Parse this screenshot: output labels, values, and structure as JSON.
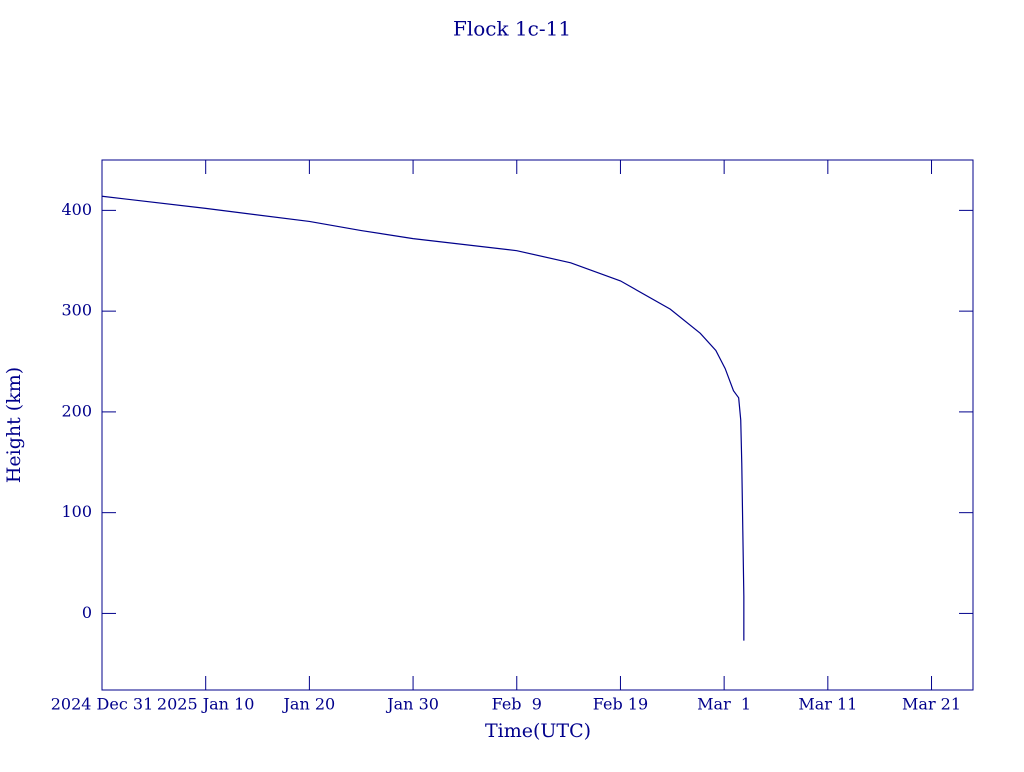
{
  "chart_data": {
    "type": "line",
    "title": "Flock 1c-11",
    "xlabel": "Time(UTC)",
    "ylabel": "Height (km)",
    "color": "#00008b",
    "x": [
      0,
      10,
      20,
      25,
      30,
      40,
      45.2,
      50,
      54.8,
      57.7,
      59.2,
      60.1,
      60.9,
      61.4,
      61.6,
      61.7,
      61.8,
      61.9,
      61.9
    ],
    "values": [
      414,
      402,
      389,
      380,
      372,
      360,
      348,
      330,
      302,
      278,
      261,
      243,
      221,
      214,
      192,
      149,
      82,
      17,
      -27
    ],
    "xlim": [
      0,
      84
    ],
    "ylim": [
      -76,
      450
    ],
    "xticks": [
      {
        "value": 0,
        "label": "2024 Dec 31"
      },
      {
        "value": 10,
        "label": "2025 Jan 10"
      },
      {
        "value": 20,
        "label": "Jan 20"
      },
      {
        "value": 30,
        "label": "Jan 30"
      },
      {
        "value": 40,
        "label": "Feb  9"
      },
      {
        "value": 50,
        "label": "Feb 19"
      },
      {
        "value": 60,
        "label": "Mar  1"
      },
      {
        "value": 70,
        "label": "Mar 11"
      },
      {
        "value": 80,
        "label": "Mar 21"
      }
    ],
    "yticks": [
      0,
      100,
      200,
      300,
      400
    ]
  }
}
